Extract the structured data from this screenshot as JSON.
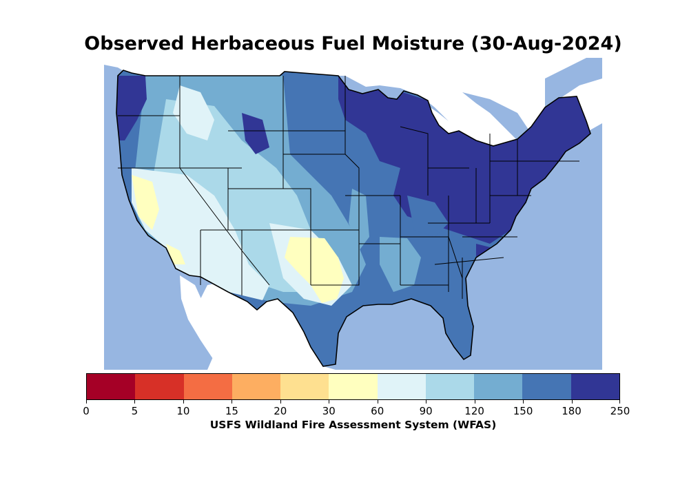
{
  "title": "Observed Herbaceous Fuel Moisture (30-Aug-2024)",
  "colorbar": {
    "label": "USFS Wildland Fire Assessment System (WFAS)",
    "ticks": [
      "0",
      "5",
      "10",
      "15",
      "20",
      "30",
      "60",
      "90",
      "120",
      "150",
      "180",
      "250"
    ],
    "colors": [
      "#a50026",
      "#d73027",
      "#f46d43",
      "#fdae61",
      "#fee090",
      "#ffffbf",
      "#e0f3f8",
      "#abd9e9",
      "#74add1",
      "#4575b4",
      "#313695"
    ]
  },
  "map": {
    "region": "contiguous-united-states",
    "ocean_color": "#97b6e1",
    "land_outside_color": "#ffffff",
    "state_border_color": "#000000"
  }
}
